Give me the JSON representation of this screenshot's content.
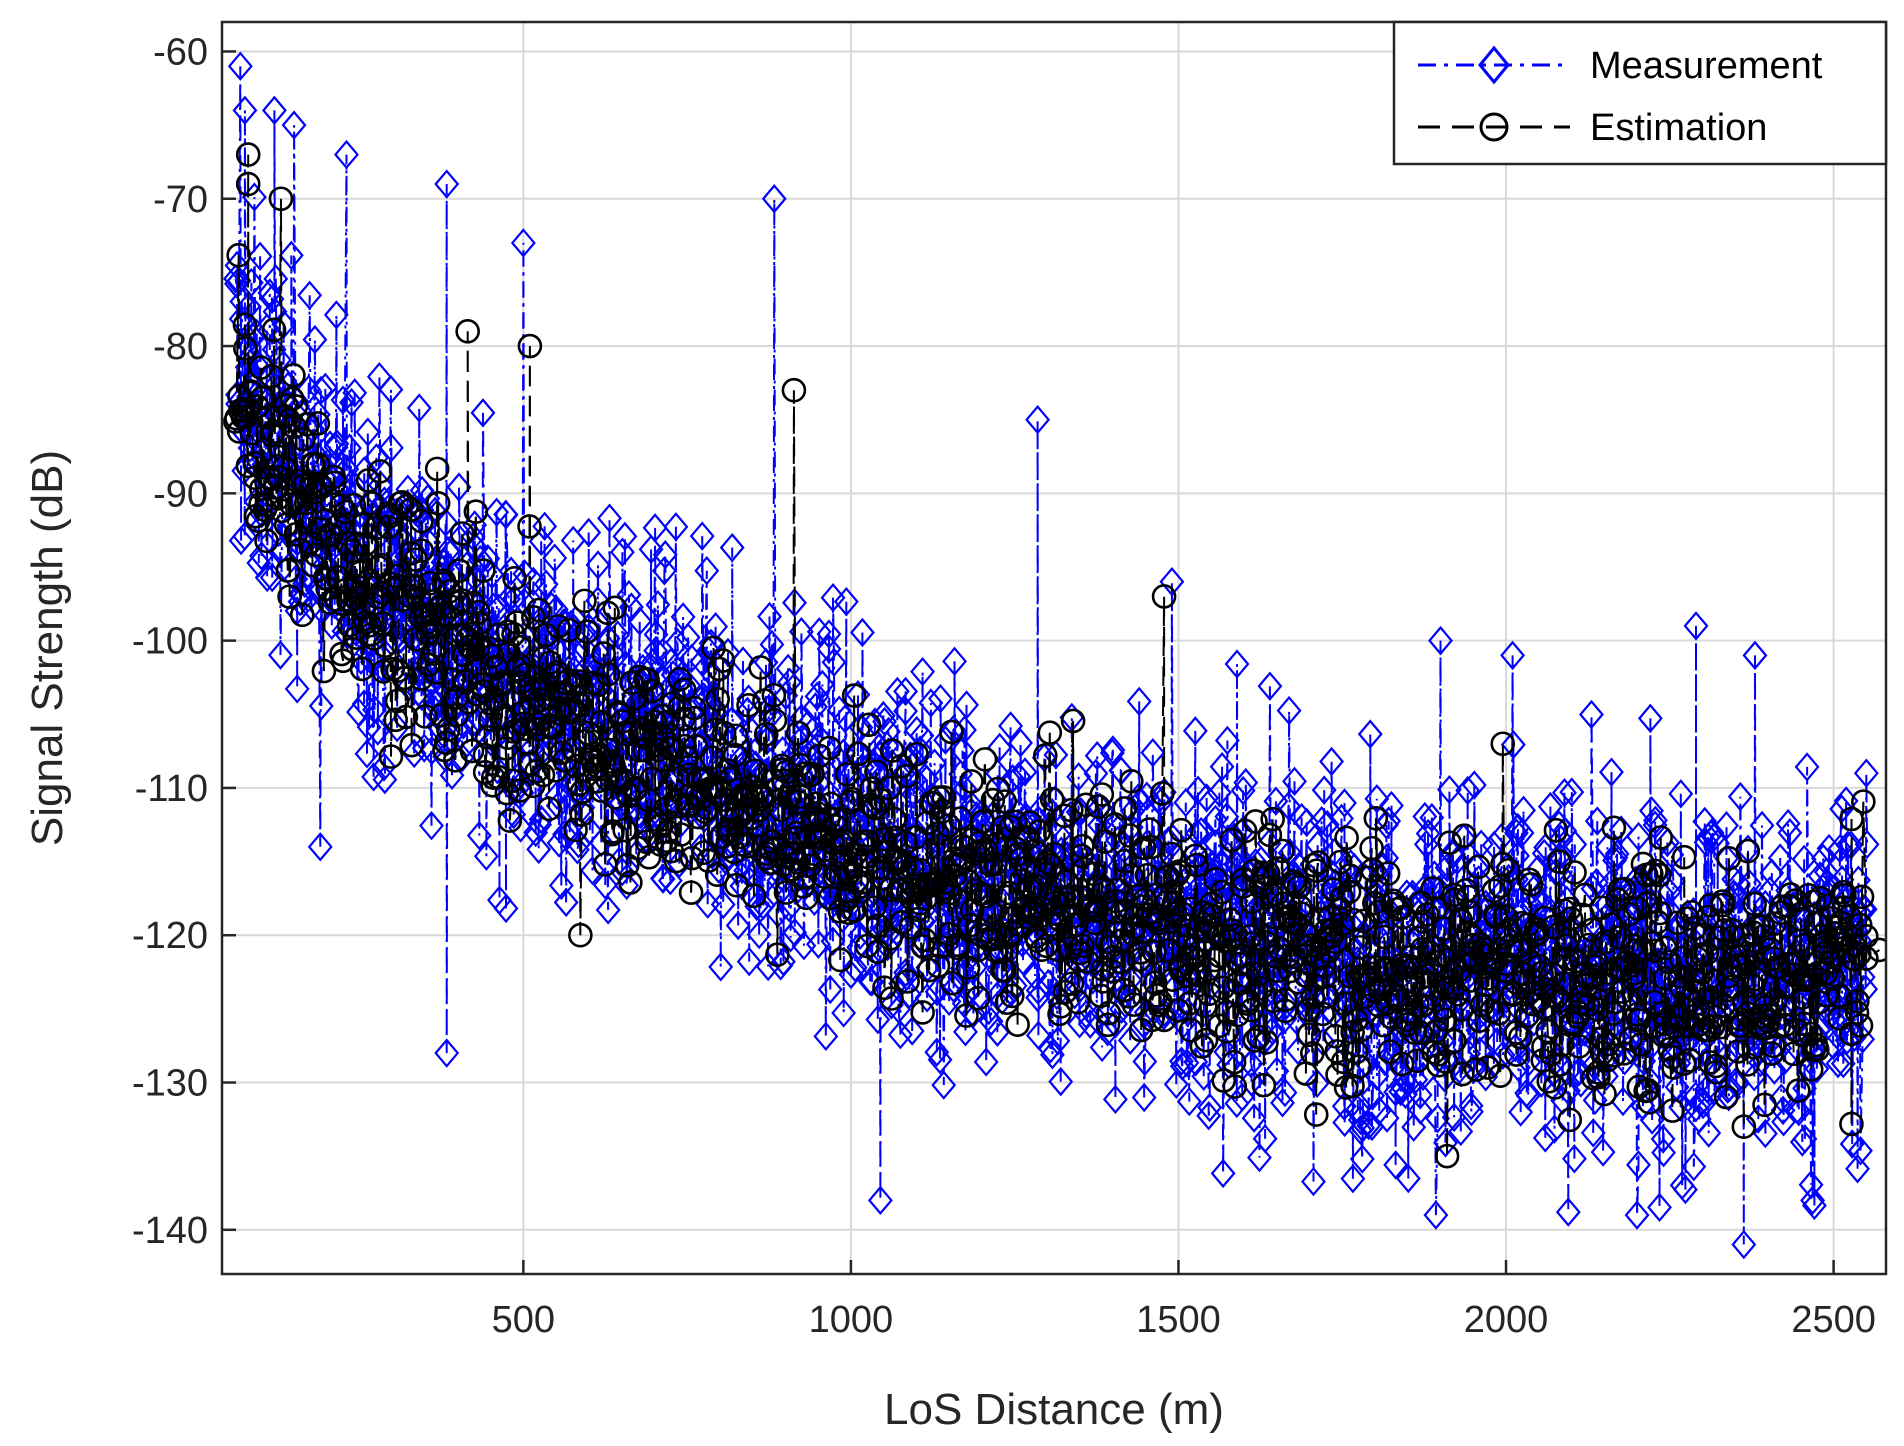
{
  "chart_data": {
    "type": "scatter",
    "title": "",
    "xlabel": "LoS Distance (m)",
    "ylabel": "Signal Strength (dB)",
    "xlim": [
      40,
      2580
    ],
    "ylim": [
      -143,
      -58
    ],
    "xticks": [
      500,
      1000,
      1500,
      2000,
      2500
    ],
    "yticks": [
      -60,
      -70,
      -80,
      -90,
      -100,
      -110,
      -120,
      -130,
      -140
    ],
    "xtick_labels": [
      "500",
      "1000",
      "1500",
      "2000",
      "2500"
    ],
    "ytick_labels": [
      "-60",
      "-70",
      "-80",
      "-90",
      "-100",
      "-110",
      "-120",
      "-130",
      "-140"
    ],
    "grid": true,
    "legend_position": "top-right",
    "series": [
      {
        "name": "Measurement",
        "color": "#0000ff",
        "marker": "diamond",
        "line_style": "dash-dot",
        "trend_x": [
          60,
          100,
          200,
          300,
          400,
          500,
          600,
          700,
          800,
          900,
          1000,
          1100,
          1200,
          1300,
          1400,
          1500,
          1600,
          1700,
          1800,
          1900,
          2000,
          2100,
          2200,
          2300,
          2400,
          2550
        ],
        "trend_y": [
          -82,
          -85,
          -92,
          -96,
          -100,
          -103,
          -105,
          -107,
          -109,
          -111,
          -113,
          -115,
          -116,
          -117,
          -118,
          -119,
          -120,
          -121,
          -121.5,
          -122,
          -122.5,
          -122.5,
          -123,
          -123,
          -123,
          -122
        ],
        "spread": 9,
        "highlight_points": [
          {
            "x": 68,
            "y": -61
          },
          {
            "x": 75,
            "y": -64
          },
          {
            "x": 120,
            "y": -64
          },
          {
            "x": 150,
            "y": -65
          },
          {
            "x": 230,
            "y": -67
          },
          {
            "x": 383,
            "y": -69
          },
          {
            "x": 883,
            "y": -70
          },
          {
            "x": 500,
            "y": -73
          },
          {
            "x": 1285,
            "y": -85
          },
          {
            "x": 1490,
            "y": -96
          },
          {
            "x": 2290,
            "y": -99
          },
          {
            "x": 1900,
            "y": -100
          },
          {
            "x": 2010,
            "y": -101
          },
          {
            "x": 2380,
            "y": -101
          },
          {
            "x": 2550,
            "y": -109
          },
          {
            "x": 190,
            "y": -114
          },
          {
            "x": 383,
            "y": -128
          },
          {
            "x": 1045,
            "y": -138
          },
          {
            "x": 1893,
            "y": -139
          },
          {
            "x": 2200,
            "y": -139
          },
          {
            "x": 2363,
            "y": -141
          },
          {
            "x": 2468,
            "y": -138
          }
        ]
      },
      {
        "name": "Estimation",
        "color": "#000000",
        "marker": "circle",
        "line_style": "dash",
        "trend_x": [
          60,
          100,
          200,
          300,
          400,
          500,
          600,
          700,
          800,
          900,
          1000,
          1100,
          1200,
          1300,
          1400,
          1500,
          1600,
          1700,
          1800,
          1900,
          2000,
          2100,
          2200,
          2300,
          2400,
          2550
        ],
        "trend_y": [
          -83,
          -86,
          -93,
          -97,
          -101,
          -104,
          -106,
          -108,
          -110,
          -112,
          -114,
          -116,
          -117,
          -117.5,
          -118.5,
          -119.5,
          -120.5,
          -121,
          -121.5,
          -122,
          -122.5,
          -123,
          -123,
          -123,
          -123,
          -121
        ],
        "spread": 6,
        "highlight_points": [
          {
            "x": 80,
            "y": -67
          },
          {
            "x": 80,
            "y": -69
          },
          {
            "x": 130,
            "y": -70
          },
          {
            "x": 415,
            "y": -79
          },
          {
            "x": 510,
            "y": -80
          },
          {
            "x": 913,
            "y": -83
          },
          {
            "x": 1478,
            "y": -97
          },
          {
            "x": 1995,
            "y": -107
          },
          {
            "x": 587,
            "y": -120
          },
          {
            "x": 1910,
            "y": -135
          },
          {
            "x": 2363,
            "y": -133
          },
          {
            "x": 2570,
            "y": -121
          }
        ]
      }
    ]
  }
}
